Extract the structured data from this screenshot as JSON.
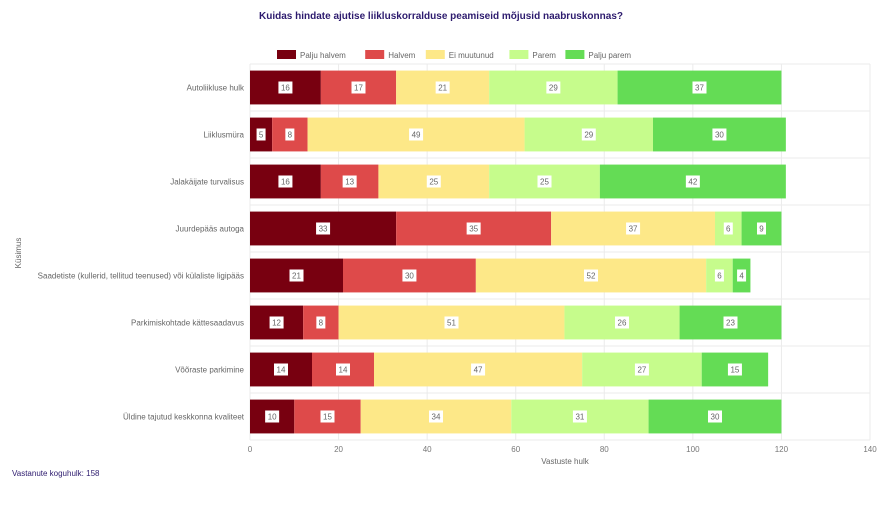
{
  "chart_data": {
    "type": "bar",
    "orientation": "horizontal",
    "stacked": true,
    "title": "Kuidas hindate ajutise liikluskorralduse peamiseid mõjusid naabruskonnas?",
    "xlabel": "Vastuste hulk",
    "ylabel": "Küsimus",
    "xlim": [
      0,
      140
    ],
    "xticks": [
      0,
      20,
      40,
      60,
      80,
      100,
      120,
      140
    ],
    "grid": true,
    "legend_position": "top",
    "categories": [
      "Autoliikluse hulk",
      "Liiklusmüra",
      "Jalakäijate turvalisus",
      "Juurdepääs autoga",
      "Saadetiste (kullerid, tellitud teenused) või külaliste ligipääs",
      "Parkimiskohtade kättesaadavus",
      "Võõraste parkimine",
      "Üldine tajutud keskkonna kvaliteet"
    ],
    "series": [
      {
        "name": "Palju halvem",
        "color": "#780010",
        "values": [
          16,
          5,
          16,
          33,
          21,
          12,
          14,
          10
        ]
      },
      {
        "name": "Halvem",
        "color": "#de4a4a",
        "values": [
          17,
          8,
          13,
          35,
          30,
          8,
          14,
          15
        ]
      },
      {
        "name": "Ei muutunud",
        "color": "#fde888",
        "values": [
          21,
          49,
          25,
          37,
          52,
          51,
          47,
          34
        ]
      },
      {
        "name": "Parem",
        "color": "#c6fc8c",
        "values": [
          29,
          29,
          25,
          6,
          6,
          26,
          27,
          31
        ]
      },
      {
        "name": "Palju parem",
        "color": "#64dc55",
        "values": [
          37,
          30,
          42,
          9,
          4,
          23,
          15,
          30
        ]
      }
    ]
  },
  "footer": "Vastanute koguhulk: 158"
}
